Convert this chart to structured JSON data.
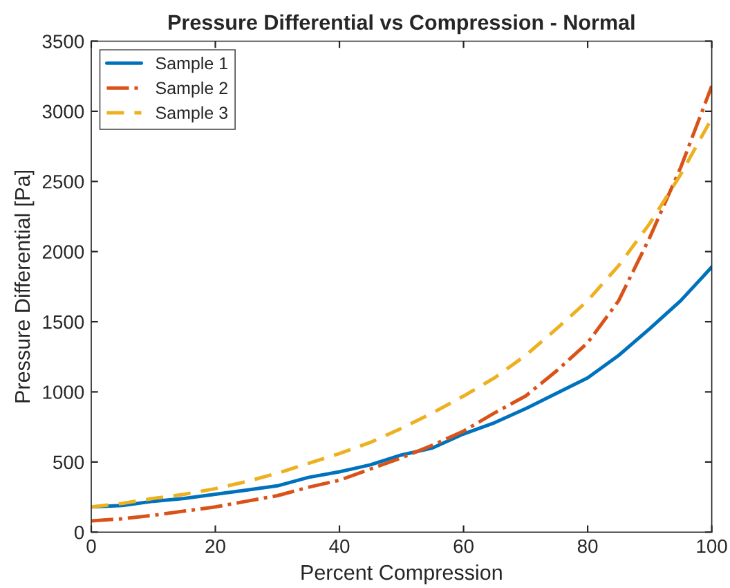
{
  "chart_data": {
    "type": "line",
    "title": "Pressure Differential vs Compression - Normal",
    "xlabel": "Percent Compression",
    "ylabel": "Pressure Differential [Pa]",
    "x": [
      0,
      5,
      10,
      15,
      20,
      25,
      30,
      35,
      40,
      45,
      50,
      55,
      60,
      65,
      70,
      75,
      80,
      85,
      90,
      95,
      100
    ],
    "series": [
      {
        "name": "Sample 1",
        "color": "#0072bd",
        "line_style": "solid",
        "values": [
          180,
          190,
          220,
          240,
          270,
          300,
          330,
          390,
          430,
          480,
          550,
          600,
          700,
          780,
          880,
          990,
          1100,
          1260,
          1450,
          1650,
          1890
        ]
      },
      {
        "name": "Sample 2",
        "color": "#d95319",
        "line_style": "dashdot",
        "values": [
          80,
          95,
          120,
          150,
          180,
          220,
          260,
          320,
          370,
          450,
          530,
          620,
          720,
          850,
          970,
          1150,
          1350,
          1650,
          2100,
          2600,
          3180
        ]
      },
      {
        "name": "Sample 3",
        "color": "#edb120",
        "line_style": "dashed",
        "values": [
          180,
          205,
          240,
          270,
          310,
          360,
          420,
          490,
          560,
          640,
          740,
          850,
          970,
          1100,
          1260,
          1450,
          1650,
          1900,
          2200,
          2550,
          2950
        ]
      }
    ],
    "xlim": [
      0,
      100
    ],
    "xticks": [
      0,
      20,
      40,
      60,
      80,
      100
    ],
    "ylim": [
      0,
      3500
    ],
    "yticks": [
      0,
      500,
      1000,
      1500,
      2000,
      2500,
      3000,
      3500
    ],
    "grid": false,
    "legend": "top left"
  }
}
